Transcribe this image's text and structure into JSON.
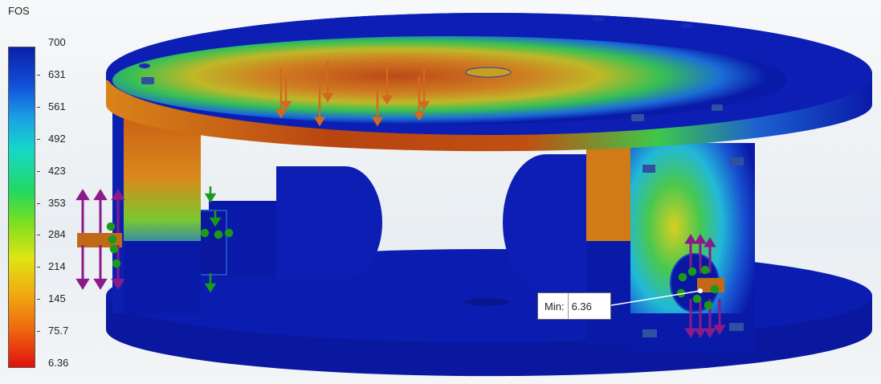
{
  "legend": {
    "title": "FOS",
    "ticks": [
      "700",
      "631",
      "561",
      "492",
      "423",
      "353",
      "284",
      "214",
      "145",
      "75.7",
      "6.36"
    ],
    "colors": {
      "high": "#0b1fa8",
      "mid": "#22d860",
      "low": "#e01010"
    }
  },
  "callout": {
    "label": "Min:",
    "value": "6.36"
  },
  "scene": {
    "background": "#eef2f5",
    "part_color": "#0a1aa8",
    "load_arrow_color": "#d2691e",
    "fixture_arrow_color": "#8b1a8b",
    "connector_color": "#1a9a1a"
  }
}
